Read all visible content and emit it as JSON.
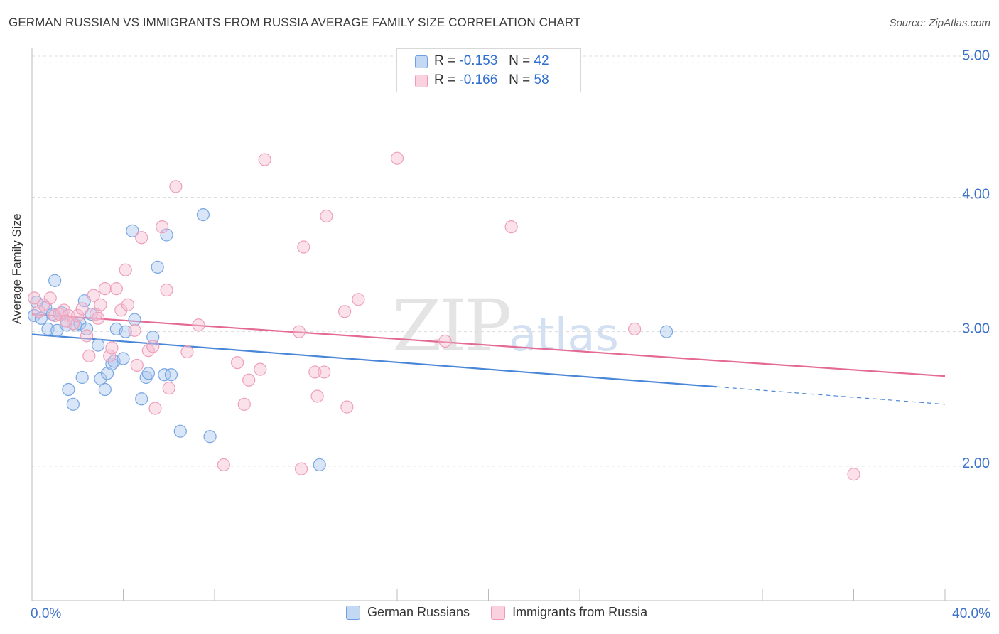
{
  "title": "GERMAN RUSSIAN VS IMMIGRANTS FROM RUSSIA AVERAGE FAMILY SIZE CORRELATION CHART",
  "source": "Source: ZipAtlas.com",
  "watermark": {
    "zip": "ZIP",
    "atlas": "atlas"
  },
  "colors": {
    "blue": "#4a86d8",
    "pink": "#e46a95",
    "blue_fill": "#aac8ee",
    "pink_fill": "#f5bdd0",
    "axis_text": "#3f72c9"
  },
  "stats": [
    {
      "r_label": "R =",
      "r": "-0.153",
      "n_label": "N =",
      "n": "42"
    },
    {
      "r_label": "R =",
      "r": "-0.166",
      "n_label": "N =",
      "n": "58"
    }
  ],
  "legend": [
    "German Russians",
    "Immigrants from Russia"
  ],
  "chart_data": {
    "type": "scatter",
    "title": "GERMAN RUSSIAN VS IMMIGRANTS FROM RUSSIA AVERAGE FAMILY SIZE CORRELATION CHART",
    "xlabel": "",
    "ylabel": "Average Family Size",
    "xlim": [
      0,
      40
    ],
    "ylim": [
      1.0,
      5.15
    ],
    "x_tick_labels": [
      "0.0%",
      "40.0%"
    ],
    "y_ticks": [
      2.0,
      3.0,
      4.0,
      5.0
    ],
    "y_tick_labels": [
      "2.00",
      "3.00",
      "4.00",
      "5.00"
    ],
    "series": [
      {
        "name": "German Russians",
        "color": "#4a86d8",
        "trend": {
          "x0": 0,
          "y0": 2.98,
          "x1": 30,
          "y1": 2.59,
          "dash_x1": 40,
          "dash_y1": 2.46
        },
        "points": [
          [
            0.1,
            3.12
          ],
          [
            0.4,
            3.1
          ],
          [
            0.6,
            3.18
          ],
          [
            0.9,
            3.13
          ],
          [
            0.7,
            3.02
          ],
          [
            1.0,
            3.38
          ],
          [
            1.1,
            3.01
          ],
          [
            1.3,
            3.14
          ],
          [
            1.5,
            3.05
          ],
          [
            1.6,
            2.57
          ],
          [
            1.8,
            2.46
          ],
          [
            1.9,
            3.05
          ],
          [
            2.1,
            3.06
          ],
          [
            2.2,
            2.66
          ],
          [
            2.3,
            3.23
          ],
          [
            2.4,
            3.02
          ],
          [
            2.6,
            3.13
          ],
          [
            2.9,
            2.9
          ],
          [
            3.0,
            2.65
          ],
          [
            3.2,
            2.57
          ],
          [
            3.3,
            2.69
          ],
          [
            3.5,
            2.76
          ],
          [
            3.6,
            2.78
          ],
          [
            3.7,
            3.02
          ],
          [
            4.0,
            2.8
          ],
          [
            4.1,
            3.0
          ],
          [
            4.4,
            3.75
          ],
          [
            4.5,
            3.09
          ],
          [
            4.8,
            2.5
          ],
          [
            5.0,
            2.66
          ],
          [
            5.1,
            2.69
          ],
          [
            5.3,
            2.96
          ],
          [
            5.5,
            3.48
          ],
          [
            5.8,
            2.68
          ],
          [
            5.9,
            3.72
          ],
          [
            6.1,
            2.68
          ],
          [
            6.5,
            2.26
          ],
          [
            7.5,
            3.87
          ],
          [
            7.8,
            2.22
          ],
          [
            12.6,
            2.01
          ],
          [
            27.8,
            3.0
          ],
          [
            0.2,
            3.22
          ]
        ]
      },
      {
        "name": "Immigrants from Russia",
        "color": "#e46a95",
        "trend": {
          "x0": 0,
          "y0": 3.13,
          "x1": 40,
          "y1": 2.67
        },
        "points": [
          [
            0.1,
            3.25
          ],
          [
            0.5,
            3.2
          ],
          [
            0.8,
            3.25
          ],
          [
            1.0,
            3.12
          ],
          [
            1.2,
            3.13
          ],
          [
            1.4,
            3.16
          ],
          [
            1.6,
            3.12
          ],
          [
            1.8,
            3.06
          ],
          [
            2.0,
            3.12
          ],
          [
            2.2,
            3.17
          ],
          [
            2.4,
            2.97
          ],
          [
            2.5,
            2.82
          ],
          [
            2.7,
            3.27
          ],
          [
            2.8,
            3.13
          ],
          [
            3.0,
            3.2
          ],
          [
            3.2,
            3.32
          ],
          [
            3.4,
            2.82
          ],
          [
            3.5,
            2.88
          ],
          [
            3.7,
            3.32
          ],
          [
            3.9,
            3.16
          ],
          [
            4.1,
            3.46
          ],
          [
            4.2,
            3.2
          ],
          [
            4.5,
            3.01
          ],
          [
            4.6,
            2.75
          ],
          [
            4.8,
            3.7
          ],
          [
            5.1,
            2.86
          ],
          [
            5.3,
            2.89
          ],
          [
            5.4,
            2.43
          ],
          [
            5.7,
            3.78
          ],
          [
            5.9,
            3.31
          ],
          [
            6.0,
            2.58
          ],
          [
            6.3,
            4.08
          ],
          [
            6.8,
            2.85
          ],
          [
            7.3,
            3.05
          ],
          [
            8.4,
            2.01
          ],
          [
            9.0,
            2.77
          ],
          [
            9.3,
            2.46
          ],
          [
            9.5,
            2.64
          ],
          [
            10.0,
            2.72
          ],
          [
            10.2,
            4.28
          ],
          [
            11.7,
            3.0
          ],
          [
            11.8,
            1.98
          ],
          [
            11.9,
            3.63
          ],
          [
            12.4,
            2.7
          ],
          [
            12.5,
            2.52
          ],
          [
            12.8,
            2.7
          ],
          [
            12.9,
            3.86
          ],
          [
            13.7,
            3.15
          ],
          [
            13.8,
            2.44
          ],
          [
            14.3,
            3.24
          ],
          [
            16.0,
            4.29
          ],
          [
            18.1,
            2.93
          ],
          [
            21.0,
            3.78
          ],
          [
            26.4,
            3.02
          ],
          [
            36.0,
            1.94
          ],
          [
            0.3,
            3.15
          ],
          [
            1.5,
            3.08
          ],
          [
            2.9,
            3.1
          ]
        ]
      }
    ]
  }
}
